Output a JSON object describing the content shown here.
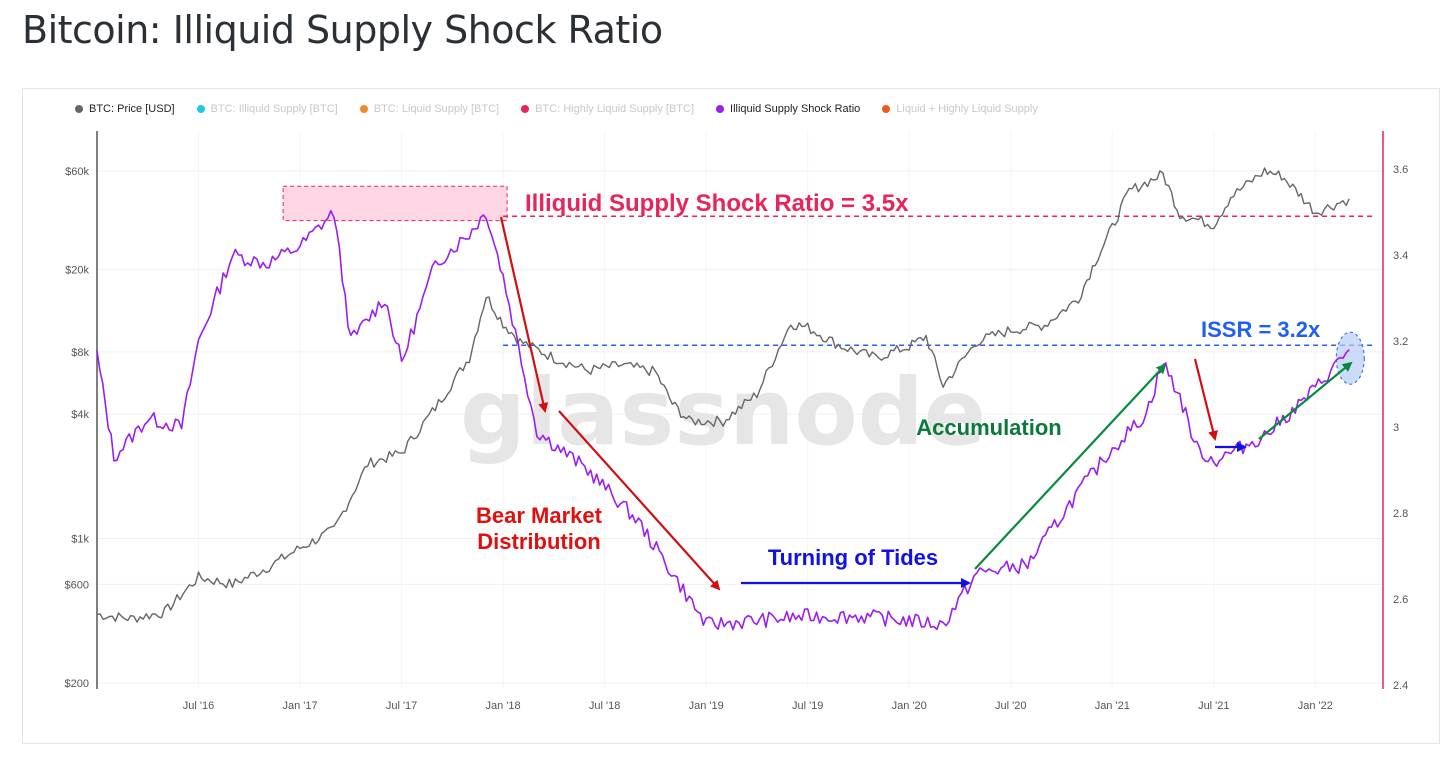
{
  "page": {
    "title": "Bitcoin: Illiquid Supply Shock Ratio"
  },
  "legend": [
    {
      "label": "BTC: Price [USD]",
      "color": "#666666",
      "active": true
    },
    {
      "label": "BTC: Illiquid Supply [BTC]",
      "color": "#1ec8e6",
      "active": false
    },
    {
      "label": "BTC: Liquid Supply [BTC]",
      "color": "#f08a24",
      "active": false
    },
    {
      "label": "BTC: Highly Liquid Supply [BTC]",
      "color": "#e8245a",
      "active": false
    },
    {
      "label": "Illiquid Supply Shock Ratio",
      "color": "#9b1ef0",
      "active": true
    },
    {
      "label": "Liquid + Highly Liquid Supply",
      "color": "#f05a1e",
      "active": false
    }
  ],
  "watermark": "glassnode",
  "chart_data": {
    "type": "line",
    "title": "Bitcoin: Illiquid Supply Shock Ratio",
    "x_range": [
      "2016-01",
      "2022-03"
    ],
    "x_ticks": [
      "Jul '16",
      "Jan '17",
      "Jul '17",
      "Jan '18",
      "Jul '18",
      "Jan '19",
      "Jul '19",
      "Jan '20",
      "Jul '20",
      "Jan '21",
      "Jul '21",
      "Jan '22"
    ],
    "y_left": {
      "scale": "log",
      "ticks": [
        "$200",
        "$600",
        "$1k",
        "$4k",
        "$8k",
        "$20k",
        "$60k"
      ],
      "tick_values": [
        200,
        600,
        1000,
        4000,
        8000,
        20000,
        60000
      ]
    },
    "y_right": {
      "scale": "linear",
      "ticks": [
        "2.4",
        "2.6",
        "2.8",
        "3",
        "3.2",
        "3.4",
        "3.6"
      ],
      "tick_values": [
        2.4,
        2.6,
        2.8,
        3.0,
        3.2,
        3.4,
        3.6
      ]
    },
    "series": [
      {
        "name": "BTC: Price [USD]",
        "axis": "left",
        "color": "#666666",
        "x": [
          "2016-01",
          "2016-03",
          "2016-05",
          "2016-07",
          "2016-09",
          "2016-11",
          "2017-01",
          "2017-03",
          "2017-05",
          "2017-07",
          "2017-09",
          "2017-11",
          "2017-12",
          "2018-01",
          "2018-02",
          "2018-04",
          "2018-06",
          "2018-08",
          "2018-10",
          "2018-11",
          "2018-12",
          "2019-02",
          "2019-04",
          "2019-06",
          "2019-07",
          "2019-09",
          "2019-11",
          "2020-01",
          "2020-02",
          "2020-03",
          "2020-05",
          "2020-07",
          "2020-09",
          "2020-11",
          "2020-12",
          "2021-01",
          "2021-02",
          "2021-04",
          "2021-05",
          "2021-07",
          "2021-08",
          "2021-10",
          "2021-11",
          "2021-12",
          "2022-01",
          "2022-03"
        ],
        "values": [
          430,
          410,
          440,
          650,
          600,
          720,
          900,
          1100,
          2300,
          2600,
          4300,
          7500,
          15000,
          11000,
          9000,
          7500,
          6500,
          6900,
          6400,
          4500,
          3700,
          3700,
          5000,
          11000,
          10500,
          8500,
          7500,
          8500,
          9500,
          5500,
          9000,
          10200,
          10800,
          14500,
          22000,
          32000,
          48000,
          58000,
          37000,
          33000,
          45000,
          60000,
          57000,
          47000,
          38000,
          44000
        ]
      },
      {
        "name": "Illiquid Supply Shock Ratio",
        "axis": "right",
        "color": "#9b1ef0",
        "x": [
          "2016-01",
          "2016-02",
          "2016-04",
          "2016-06",
          "2016-07",
          "2016-09",
          "2016-11",
          "2017-01",
          "2017-03",
          "2017-04",
          "2017-06",
          "2017-07",
          "2017-09",
          "2017-11",
          "2017-12",
          "2018-01",
          "2018-03",
          "2018-06",
          "2018-09",
          "2018-12",
          "2019-01",
          "2019-04",
          "2019-07",
          "2019-10",
          "2020-01",
          "2020-03",
          "2020-05",
          "2020-08",
          "2020-11",
          "2021-01",
          "2021-03",
          "2021-04",
          "2021-05",
          "2021-06",
          "2021-07",
          "2021-08",
          "2021-10",
          "2021-12",
          "2022-01",
          "2022-03"
        ],
        "values": [
          3.17,
          2.93,
          3.02,
          3.0,
          3.2,
          3.4,
          3.38,
          3.42,
          3.5,
          3.2,
          3.3,
          3.15,
          3.38,
          3.45,
          3.5,
          3.35,
          2.99,
          2.9,
          2.78,
          2.6,
          2.54,
          2.55,
          2.56,
          2.56,
          2.55,
          2.54,
          2.66,
          2.68,
          2.85,
          2.95,
          3.03,
          3.15,
          3.07,
          2.95,
          2.92,
          2.94,
          2.98,
          3.05,
          3.09,
          3.18
        ]
      }
    ],
    "reference_lines": [
      {
        "axis": "right",
        "value": 3.49,
        "color": "#e8245a",
        "style": "dashed"
      },
      {
        "axis": "right",
        "value": 3.19,
        "color": "#2060f0",
        "style": "dashed"
      }
    ],
    "annotations": [
      {
        "text": "Illiquid Supply Shock Ratio = 3.5x",
        "color": "#e8245a"
      },
      {
        "text": "ISSR = 3.2x",
        "color": "#2060f0"
      },
      {
        "text": "Bear Market\nDistribution",
        "color": "#e01010"
      },
      {
        "text": "Turning of Tides",
        "color": "#1010e8"
      },
      {
        "text": "Accumulation",
        "color": "#0a7a3a"
      }
    ],
    "grid": true,
    "legend_position": "top-left"
  }
}
